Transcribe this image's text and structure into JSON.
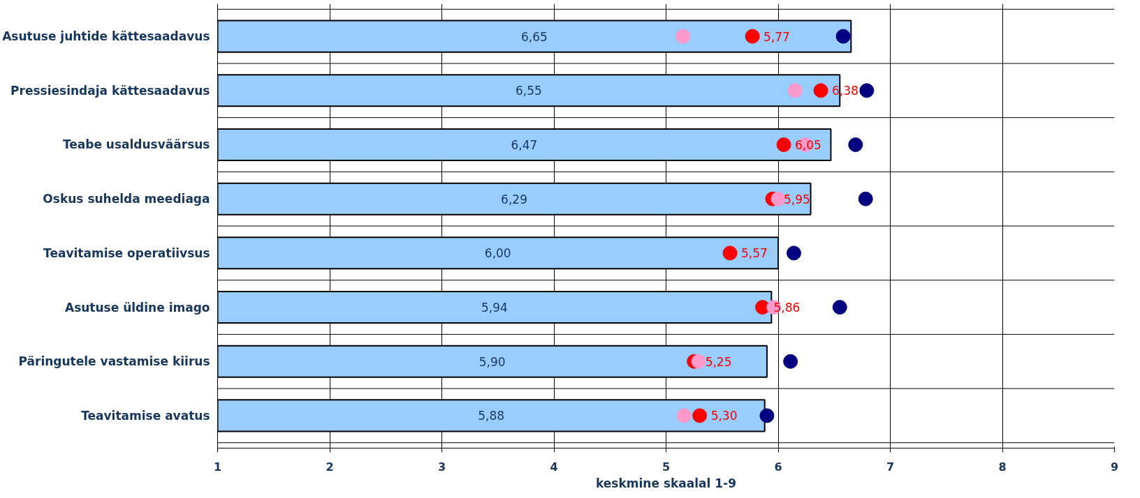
{
  "chart_data": {
    "type": "bar",
    "orientation": "horizontal",
    "xlabel": "keskmine skaalal 1-9",
    "categories": [
      "Asutuse juhtide kättesaadavus",
      "Pressiesindaja kättesaadavus",
      "Teabe usaldusväärsus",
      "Oskus suhelda meediaga",
      "Teavitamise operatiivsus",
      "Asutuse üldine imago",
      "Päringutele vastamise kiirus",
      "Teavitamise avatus"
    ],
    "xlim": [
      1,
      9
    ],
    "xticks": [
      1,
      2,
      3,
      4,
      5,
      6,
      7,
      8,
      9
    ],
    "grid": true,
    "series": [
      {
        "color": "#99ccff",
        "values": [
          6.65,
          6.55,
          6.47,
          6.29,
          6.0,
          5.94,
          5.9,
          5.88
        ],
        "value_labels": [
          "6,65",
          "6,55",
          "6,47",
          "6,29",
          "6,00",
          "5,94",
          "5,90",
          "5,88"
        ]
      },
      {
        "type": "scatter",
        "color": "#ff0000",
        "marker": "circle",
        "values": [
          5.77,
          6.38,
          6.05,
          5.95,
          5.57,
          5.86,
          5.25,
          5.3
        ],
        "value_labels": [
          "5,77",
          "6,38",
          "6,05",
          "5,95",
          "5,57",
          "5,86",
          "5,25",
          "5,30"
        ]
      },
      {
        "type": "scatter",
        "color": "#ff99cc",
        "marker": "circle",
        "values": [
          5.15,
          6.15,
          6.24,
          6.0,
          null,
          5.96,
          5.29,
          5.16
        ]
      },
      {
        "type": "scatter",
        "color": "#000080",
        "marker": "circle",
        "values": [
          6.58,
          6.79,
          6.69,
          6.78,
          6.14,
          6.55,
          6.11,
          5.9
        ]
      }
    ]
  }
}
